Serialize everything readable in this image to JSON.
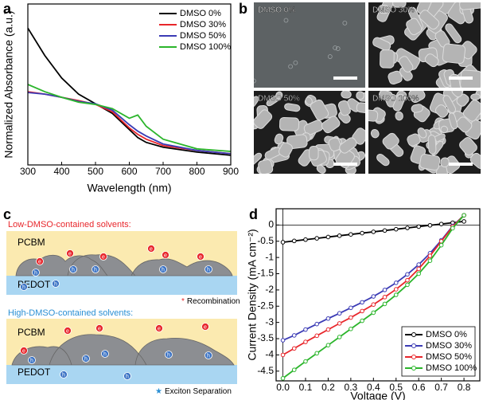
{
  "panel_labels": [
    "a",
    "b",
    "c",
    "d"
  ],
  "chart_data": [
    {
      "type": "line",
      "x_label": "Wavelength (nm)",
      "y_label": "Normalized Absorbance (a.u.)",
      "x": [
        300,
        350,
        400,
        450,
        500,
        550,
        600,
        625,
        650,
        700,
        800,
        900
      ],
      "series": [
        {
          "name": "DMSO 0%",
          "color": "#000000",
          "values": [
            0.85,
            0.68,
            0.54,
            0.44,
            0.38,
            0.32,
            0.22,
            0.17,
            0.14,
            0.11,
            0.08,
            0.06
          ]
        },
        {
          "name": "DMSO 30%",
          "color": "#e8262b",
          "values": [
            0.455,
            0.44,
            0.42,
            0.4,
            0.376,
            0.33,
            0.23,
            0.19,
            0.16,
            0.12,
            0.09,
            0.07
          ]
        },
        {
          "name": "DMSO 50%",
          "color": "#3b3bb5",
          "values": [
            0.45,
            0.44,
            0.42,
            0.395,
            0.38,
            0.34,
            0.25,
            0.21,
            0.18,
            0.13,
            0.09,
            0.07
          ]
        },
        {
          "name": "DMSO 100%",
          "color": "#2bb52b",
          "values": [
            0.5,
            0.455,
            0.42,
            0.39,
            0.376,
            0.35,
            0.29,
            0.31,
            0.24,
            0.16,
            0.1,
            0.084
          ]
        }
      ],
      "xlim": [
        300,
        900
      ],
      "xticks": [
        300,
        400,
        500,
        600,
        700,
        800,
        900
      ],
      "ylim": [
        0,
        1
      ],
      "legend": "upper right",
      "markers": false,
      "zero_lines": false
    },
    {
      "type": "line",
      "x_label": "Voltage (V)",
      "y_label": "Current Density (mA cm⁻²)",
      "x": [
        0,
        0.05,
        0.1,
        0.15,
        0.2,
        0.25,
        0.3,
        0.35,
        0.4,
        0.45,
        0.5,
        0.55,
        0.6,
        0.65,
        0.7,
        0.75,
        0.8
      ],
      "series": [
        {
          "name": "DMSO 0%",
          "color": "#000000",
          "values": [
            -0.53,
            -0.49,
            -0.45,
            -0.41,
            -0.37,
            -0.33,
            -0.29,
            -0.25,
            -0.21,
            -0.17,
            -0.13,
            -0.09,
            -0.05,
            -0.01,
            0.03,
            0.07,
            0.11
          ]
        },
        {
          "name": "DMSO 30%",
          "color": "#3b3bb5",
          "values": [
            -3.55,
            -3.4,
            -3.22,
            -3.05,
            -2.88,
            -2.72,
            -2.55,
            -2.38,
            -2.2,
            -2.0,
            -1.78,
            -1.52,
            -1.22,
            -0.87,
            -0.47,
            -0.03,
            0.3
          ]
        },
        {
          "name": "DMSO 50%",
          "color": "#e8262b",
          "values": [
            -4.0,
            -3.8,
            -3.6,
            -3.41,
            -3.22,
            -3.03,
            -2.85,
            -2.65,
            -2.45,
            -2.22,
            -1.98,
            -1.7,
            -1.35,
            -0.95,
            -0.5,
            -0.05,
            0.3
          ]
        },
        {
          "name": "DMSO 100%",
          "color": "#2bb52b",
          "values": [
            -4.72,
            -4.46,
            -4.2,
            -3.95,
            -3.7,
            -3.45,
            -3.2,
            -2.95,
            -2.7,
            -2.43,
            -2.15,
            -1.84,
            -1.5,
            -1.1,
            -0.62,
            -0.1,
            0.3
          ]
        }
      ],
      "xlim": [
        -0.03,
        0.87
      ],
      "xticks": [
        {
          "value": 0,
          "label": "0.0"
        },
        0.1,
        0.2,
        0.3,
        0.4,
        0.5,
        0.6,
        0.7,
        0.8
      ],
      "ylim": [
        -4.8,
        0.5
      ],
      "yticks": [
        0,
        -0.5,
        -1,
        -1.5,
        -2,
        -2.5,
        -3,
        -3.5,
        -4,
        -4.5
      ],
      "legend": "lower right",
      "markers": true,
      "zero_lines": true
    }
  ],
  "sem_images": {
    "labels": [
      "DMSO 0%",
      "DMSO 30%",
      "DMSO 50%",
      "DMSO 100%"
    ]
  },
  "schematic": {
    "low": {
      "title": "Low-DMSO-contained solvents:",
      "top_layer": "PCBM",
      "bottom_layer": "PEDOT",
      "note_symbol": "*",
      "note": "Recombination"
    },
    "high": {
      "title": "High-DMSO-contained solvents:",
      "top_layer": "PCBM",
      "bottom_layer": "PEDOT",
      "note_symbol": "★",
      "note": "Exciton Separation"
    },
    "electron_label": "e",
    "hole_label": "h"
  }
}
